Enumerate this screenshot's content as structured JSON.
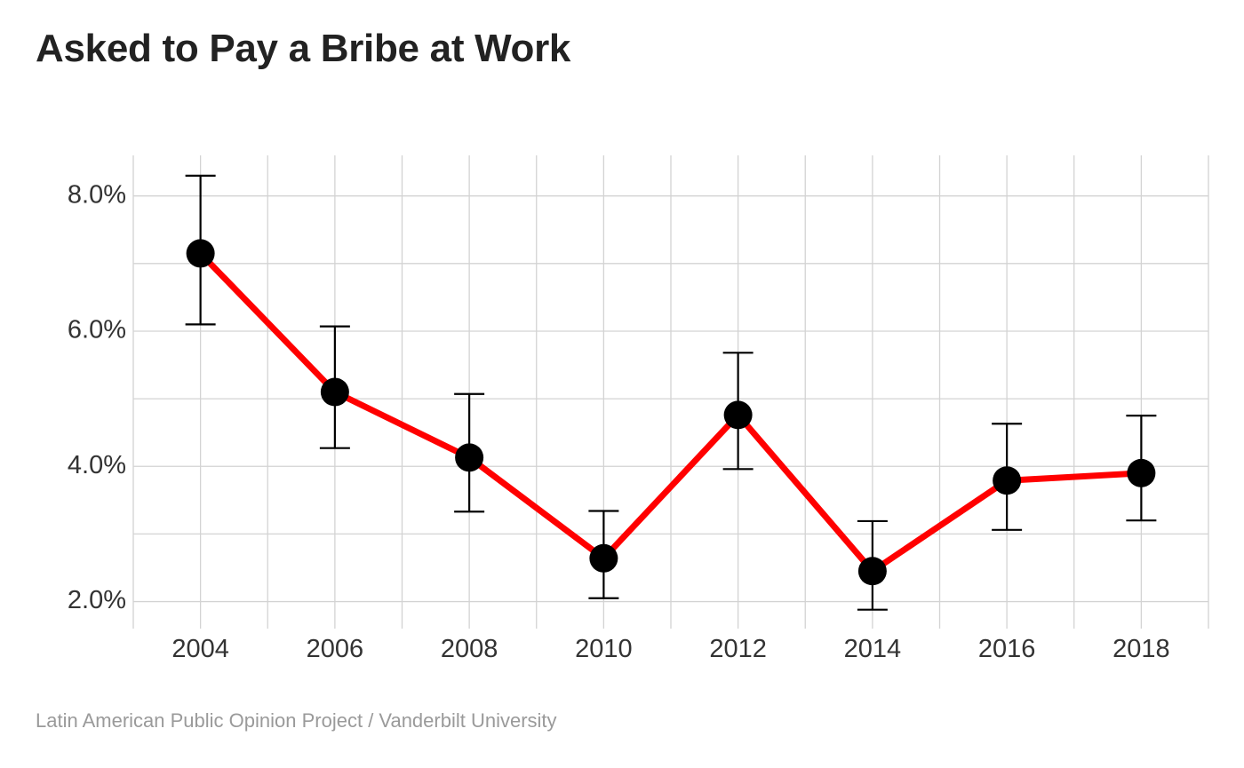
{
  "chart_data": {
    "type": "line",
    "title": "Asked to Pay a Bribe at Work",
    "caption": "Latin American Public Opinion Project / Vanderbilt University",
    "xlabel": "",
    "ylabel": "",
    "x": [
      2004,
      2006,
      2008,
      2010,
      2012,
      2014,
      2016,
      2018
    ],
    "x_tick_labels": [
      "2004",
      "2006",
      "2008",
      "2010",
      "2012",
      "2014",
      "2016",
      "2018"
    ],
    "y_ticks": [
      2.0,
      4.0,
      6.0,
      8.0
    ],
    "y_tick_labels": [
      "2.0%",
      "4.0%",
      "6.0%",
      "8.0%"
    ],
    "ylim": [
      1.6,
      8.6
    ],
    "xlim": [
      2003.0,
      2019.0
    ],
    "series": [
      {
        "values": [
          7.15,
          5.1,
          4.13,
          2.64,
          4.76,
          2.45,
          3.79,
          3.9
        ],
        "ci_lower": [
          6.1,
          4.27,
          3.33,
          2.05,
          3.96,
          1.88,
          3.06,
          3.2
        ],
        "ci_upper": [
          8.3,
          6.07,
          5.07,
          3.34,
          5.68,
          3.19,
          4.63,
          4.75
        ],
        "line_color": "#ff0000",
        "marker_color": "#000000",
        "errorbar_color": "#000000"
      }
    ],
    "grid": true,
    "grid_color": "#d3d3d3",
    "legend": "none"
  }
}
